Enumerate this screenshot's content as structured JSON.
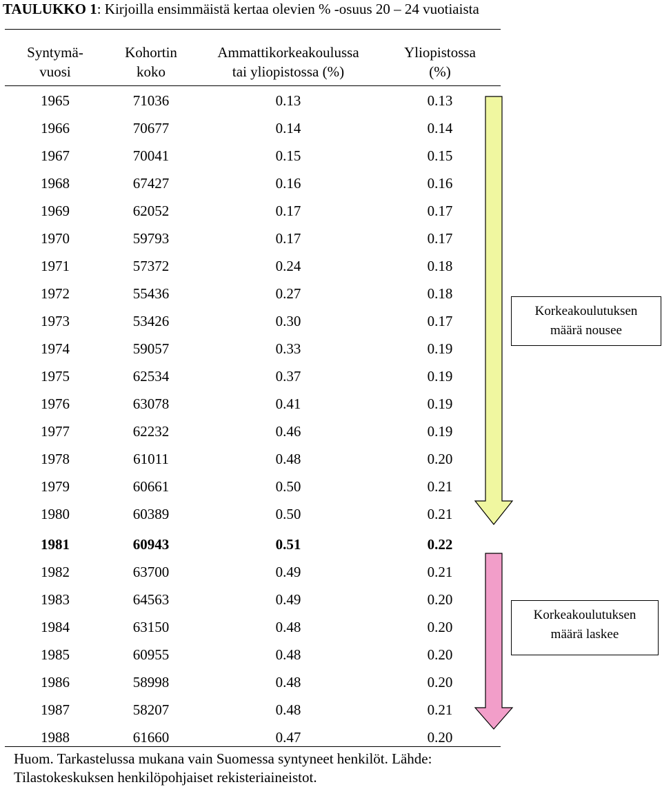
{
  "caption": {
    "label": "TAULUKKO 1",
    "text": ": Kirjoilla ensimmäistä kertaa olevien % -osuus 20 – 24 vuotiaista"
  },
  "headers": [
    [
      "Syntymä-",
      "vuosi"
    ],
    [
      "Kohortin",
      "koko"
    ],
    [
      "Ammattikorkeakoulussa",
      "tai yliopistossa (%)"
    ],
    [
      "Yliopistossa",
      "(%)"
    ]
  ],
  "rows": [
    [
      "1965",
      "71036",
      "0.13",
      "0.13"
    ],
    [
      "1966",
      "70677",
      "0.14",
      "0.14"
    ],
    [
      "1967",
      "70041",
      "0.15",
      "0.15"
    ],
    [
      "1968",
      "67427",
      "0.16",
      "0.16"
    ],
    [
      "1969",
      "62052",
      "0.17",
      "0.17"
    ],
    [
      "1970",
      "59793",
      "0.17",
      "0.17"
    ],
    [
      "1971",
      "57372",
      "0.24",
      "0.18"
    ],
    [
      "1972",
      "55436",
      "0.27",
      "0.18"
    ],
    [
      "1973",
      "53426",
      "0.30",
      "0.17"
    ],
    [
      "1974",
      "59057",
      "0.33",
      "0.19"
    ],
    [
      "1975",
      "62534",
      "0.37",
      "0.19"
    ],
    [
      "1976",
      "63078",
      "0.41",
      "0.19"
    ],
    [
      "1977",
      "62232",
      "0.46",
      "0.19"
    ],
    [
      "1978",
      "61011",
      "0.48",
      "0.20"
    ],
    [
      "1979",
      "60661",
      "0.50",
      "0.21"
    ],
    [
      "1980",
      "60389",
      "0.50",
      "0.21"
    ],
    [
      "1981",
      "60943",
      "0.51",
      "0.22"
    ],
    [
      "1982",
      "63700",
      "0.49",
      "0.21"
    ],
    [
      "1983",
      "64563",
      "0.49",
      "0.20"
    ],
    [
      "1984",
      "63150",
      "0.48",
      "0.20"
    ],
    [
      "1985",
      "60955",
      "0.48",
      "0.20"
    ],
    [
      "1986",
      "58998",
      "0.48",
      "0.20"
    ],
    [
      "1987",
      "58207",
      "0.48",
      "0.21"
    ],
    [
      "1988",
      "61660",
      "0.47",
      "0.20"
    ]
  ],
  "bold_row_year": "1981",
  "arrows": {
    "up": {
      "label_line1": "Korkeakoulutuksen",
      "label_line2": "määrä nousee",
      "color": "#f0f7a0"
    },
    "down": {
      "label_line1": "Korkeakoulutuksen",
      "label_line2": "määrä laskee",
      "color": "#f29ec9"
    }
  },
  "note": {
    "line1": "Huom. Tarkastelussa mukana vain Suomessa syntyneet henkilöt. Lähde:",
    "line2": "Tilastokeskuksen henkilöpohjaiset rekisteriaineistot."
  }
}
